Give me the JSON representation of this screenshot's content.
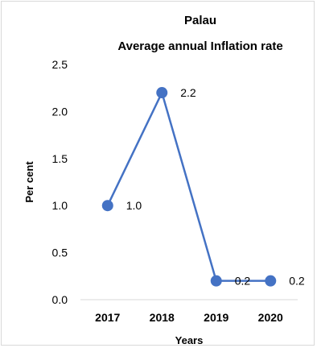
{
  "chart_data": {
    "type": "line",
    "title_lines": [
      "Palau",
      "Average annual Inflation rate"
    ],
    "xlabel": "Years",
    "ylabel": "Per cent",
    "categories": [
      "2017",
      "2018",
      "2019",
      "2020"
    ],
    "series": [
      {
        "values": [
          1.0,
          2.2,
          0.2,
          0.2
        ],
        "data_labels": [
          "1.0",
          "2.2",
          "0.2",
          "0.2"
        ],
        "color": "#4472c4"
      }
    ],
    "ylim": [
      0,
      2.5
    ],
    "yticks": [
      0.0,
      0.5,
      1.0,
      1.5,
      2.0,
      2.5
    ],
    "ytick_labels": [
      "0.0",
      "0.5",
      "1.0",
      "1.5",
      "2.0",
      "2.5"
    ],
    "grid": false,
    "legend": "none"
  }
}
